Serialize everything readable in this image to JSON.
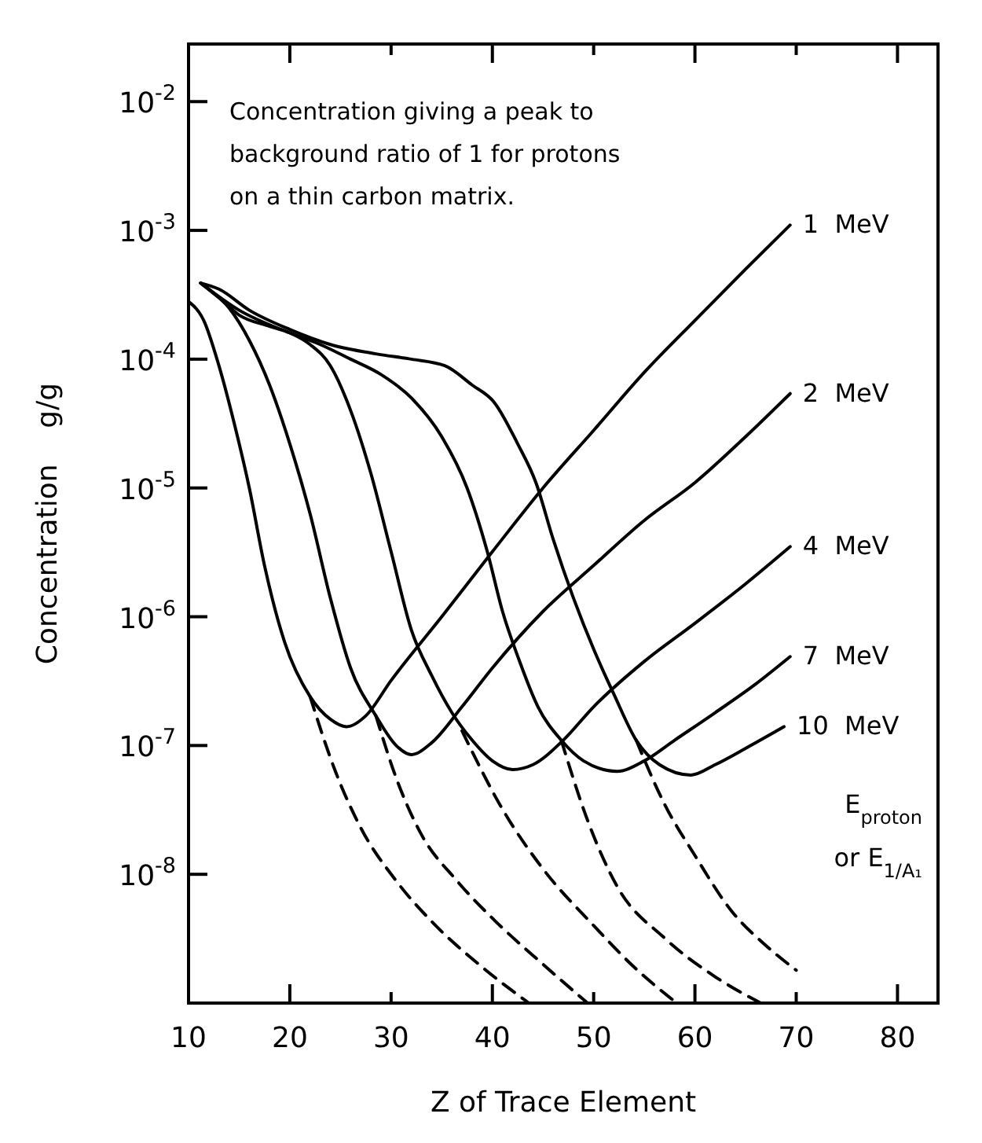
{
  "chart_data": {
    "type": "line",
    "xlabel": "Z of Trace Element",
    "ylabel": "Concentration    g/g",
    "log": "y",
    "xlim": [
      10,
      84
    ],
    "ylim": [
      1e-09,
      0.028
    ],
    "xticks": [
      10,
      20,
      30,
      40,
      50,
      60,
      70,
      80
    ],
    "yticks": [
      {
        "value": 0.01,
        "label": "10$^{-2}$"
      },
      {
        "value": 0.001,
        "label": "10$^{-3}$"
      },
      {
        "value": 0.0001,
        "label": "10$^{-4}$"
      },
      {
        "value": 1e-05,
        "label": "10$^{-5}$"
      },
      {
        "value": 1e-06,
        "label": "10$^{-6}$"
      },
      {
        "value": 1e-07,
        "label": "10$^{-7}$"
      },
      {
        "value": 1e-08,
        "label": "10$^{-8}$"
      }
    ],
    "marker": "none",
    "legend_title": "E$_{proton}$\nor E$_{1/A₁}$",
    "annotations": [
      "Concentration giving a peak to\nbackground ratio of 1 for protons\non a thin carbon matrix."
    ],
    "series": [
      {
        "name": "1  MeV",
        "color": "#000000",
        "line_style": "solid",
        "x": [
          10,
          11.5,
          13,
          14.5,
          16,
          17.5,
          19.5,
          22,
          24,
          25.6,
          27.5,
          30,
          35,
          40,
          45,
          50,
          55,
          60,
          65,
          69.4
        ],
        "values": [
          0.00028,
          0.0002,
          8.9e-05,
          3.2e-05,
          1e-05,
          2.5e-06,
          6.3e-07,
          2.4e-07,
          1.6e-07,
          1.4e-07,
          1.7e-07,
          3.2e-07,
          1e-06,
          3.2e-06,
          1e-05,
          2.8e-05,
          7.9e-05,
          0.0002,
          0.0005,
          0.0011
        ]
      },
      {
        "name": "2  MeV",
        "color": "#000000",
        "line_style": "solid",
        "x": [
          11.2,
          12,
          14,
          16,
          18,
          20,
          22,
          24,
          26,
          28.5,
          30.5,
          32,
          34,
          37,
          40,
          45,
          50,
          55,
          60,
          65,
          69.4
        ],
        "values": [
          0.00039,
          0.00035,
          0.00025,
          0.00014,
          6.3e-05,
          2.2e-05,
          6.3e-06,
          1.4e-06,
          4e-07,
          1.7e-07,
          1e-07,
          8.5e-08,
          1.05e-07,
          2e-07,
          4e-07,
          1.1e-06,
          2.5e-06,
          5.6e-06,
          1.1e-05,
          2.5e-05,
          5.4e-05
        ]
      },
      {
        "name": "4  MeV",
        "color": "#000000",
        "line_style": "solid",
        "x": [
          11.2,
          13,
          15,
          18,
          20,
          22,
          24,
          26,
          28,
          30,
          32,
          34,
          36,
          38,
          40,
          42,
          44,
          47,
          50,
          55,
          60,
          65,
          69.4
        ],
        "values": [
          0.00039,
          0.0003,
          0.00022,
          0.00018,
          0.00016,
          0.00013,
          8.9e-05,
          4e-05,
          1.3e-05,
          3.2e-06,
          7.9e-07,
          3.5e-07,
          1.8e-07,
          1.1e-07,
          7.6e-08,
          6.5e-08,
          7.1e-08,
          1.1e-07,
          2e-07,
          4.5e-07,
          8.9e-07,
          1.8e-06,
          3.5e-06
        ]
      },
      {
        "name": "7  MeV",
        "color": "#000000",
        "line_style": "solid",
        "x": [
          11.2,
          15,
          20,
          23,
          26,
          29,
          32,
          35,
          37.5,
          39.5,
          41,
          42.6,
          44.5,
          46.8,
          49,
          52.3,
          55,
          58,
          62,
          66,
          69.4
        ],
        "values": [
          0.00039,
          0.00024,
          0.00016,
          0.00013,
          0.0001,
          7.6e-05,
          5e-05,
          2.5e-05,
          1e-05,
          3.2e-06,
          1.1e-06,
          4.7e-07,
          2e-07,
          1.1e-07,
          7.6e-08,
          6.3e-08,
          7.6e-08,
          1.1e-07,
          1.8e-07,
          3e-07,
          4.9e-07
        ]
      },
      {
        "name": "10  MeV",
        "color": "#000000",
        "line_style": "solid",
        "x": [
          11.2,
          13,
          16,
          20,
          24,
          28.5,
          32,
          35.3,
          38,
          40.2,
          42.5,
          44.3,
          46,
          48,
          50,
          52,
          54.2,
          56.5,
          59.6,
          62,
          65,
          68.8
        ],
        "values": [
          0.00039,
          0.00035,
          0.00024,
          0.00017,
          0.00013,
          0.00011,
          0.0001,
          8.9e-05,
          6.3e-05,
          4.6e-05,
          2.2e-05,
          1.1e-05,
          4e-06,
          1.4e-06,
          5.6e-07,
          2.5e-07,
          1.1e-07,
          7.1e-08,
          5.9e-08,
          7.1e-08,
          9.5e-08,
          1.4e-07
        ]
      },
      {
        "color": "#000000",
        "line_style": "dashed",
        "x": [
          22,
          24.5,
          27,
          30.5,
          34.4,
          39,
          43.6
        ],
        "values": [
          2.4e-07,
          6.3e-08,
          2.3e-08,
          8.9e-09,
          4e-09,
          1.9e-09,
          1e-09
        ]
      },
      {
        "color": "#000000",
        "line_style": "dashed",
        "x": [
          28.5,
          30.5,
          32.9,
          36.5,
          40.2,
          45,
          49.4
        ],
        "values": [
          1.7e-07,
          5.6e-08,
          2.1e-08,
          8.9e-09,
          4.4e-09,
          2e-09,
          1e-09
        ]
      },
      {
        "color": "#000000",
        "line_style": "dashed",
        "x": [
          37,
          41,
          45,
          50,
          54,
          58.2
        ],
        "values": [
          1.3e-07,
          3.2e-08,
          1.1e-08,
          4e-09,
          1.9e-09,
          1e-09
        ]
      },
      {
        "color": "#000000",
        "line_style": "dashed",
        "x": [
          46.8,
          49.5,
          52.3,
          57,
          62,
          66.5
        ],
        "values": [
          1.1e-07,
          2.5e-08,
          8.1e-09,
          3.2e-09,
          1.6e-09,
          1e-09
        ]
      },
      {
        "color": "#000000",
        "line_style": "dashed",
        "x": [
          54.2,
          57,
          60,
          63.6,
          67,
          70
        ],
        "values": [
          1.1e-07,
          3.5e-08,
          1.4e-08,
          5.2e-09,
          2.8e-09,
          1.8e-09
        ]
      }
    ]
  }
}
